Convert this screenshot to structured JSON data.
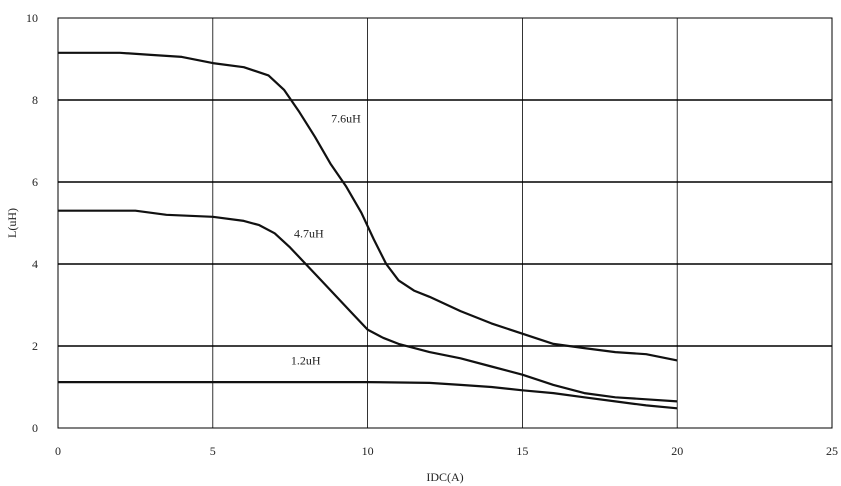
{
  "chart_data": {
    "type": "line",
    "title": "",
    "xlabel": "IDC(A)",
    "ylabel": "L(uH)",
    "xlim": [
      0,
      25
    ],
    "ylim": [
      0,
      10
    ],
    "xticks": [
      "0",
      "5",
      "10",
      "15",
      "20",
      "25"
    ],
    "yticks": [
      "0",
      "2",
      "4",
      "6",
      "8",
      "10"
    ],
    "grid": true,
    "series": [
      {
        "name": "7.6uH",
        "x": [
          0,
          2,
          3,
          4,
          5,
          6,
          6.8,
          7.3,
          7.8,
          8.3,
          8.8,
          9.3,
          9.8,
          10.2,
          10.6,
          11,
          11.5,
          12,
          13,
          14,
          15,
          16,
          17,
          18,
          19,
          20
        ],
        "y": [
          9.15,
          9.15,
          9.1,
          9.05,
          8.9,
          8.8,
          8.6,
          8.25,
          7.7,
          7.1,
          6.45,
          5.9,
          5.25,
          4.6,
          4.0,
          3.6,
          3.35,
          3.2,
          2.85,
          2.55,
          2.3,
          2.05,
          1.95,
          1.85,
          1.8,
          1.65
        ]
      },
      {
        "name": "4.7uH",
        "x": [
          0,
          2.5,
          3.5,
          5,
          6,
          6.5,
          7,
          7.5,
          8,
          8.5,
          9,
          9.5,
          10,
          10.5,
          11,
          12,
          13,
          14,
          15,
          16,
          17,
          18,
          19,
          20
        ],
        "y": [
          5.3,
          5.3,
          5.2,
          5.15,
          5.05,
          4.95,
          4.75,
          4.4,
          4.0,
          3.6,
          3.2,
          2.8,
          2.4,
          2.2,
          2.05,
          1.85,
          1.7,
          1.5,
          1.3,
          1.05,
          0.85,
          0.75,
          0.7,
          0.65
        ]
      },
      {
        "name": "1.2uH",
        "x": [
          0,
          5,
          10,
          12,
          13,
          14,
          15,
          16,
          17,
          18,
          19,
          20
        ],
        "y": [
          1.12,
          1.12,
          1.12,
          1.1,
          1.05,
          1.0,
          0.92,
          0.85,
          0.75,
          0.65,
          0.55,
          0.48
        ]
      }
    ]
  }
}
